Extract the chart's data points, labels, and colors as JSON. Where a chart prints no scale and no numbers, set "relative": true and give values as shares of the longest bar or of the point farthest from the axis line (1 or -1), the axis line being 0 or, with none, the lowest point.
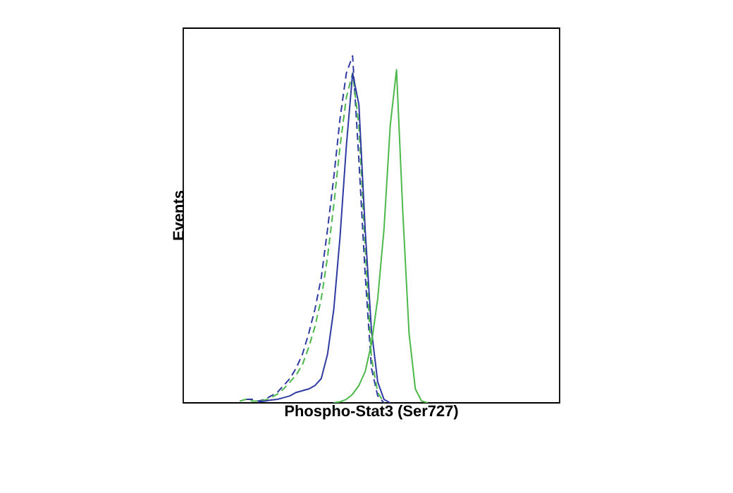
{
  "chart_data": {
    "type": "line",
    "relative": true,
    "xlabel": "Phospho-Stat3 (Ser727)",
    "ylabel": "Events",
    "marker": "none",
    "categories": [
      null,
      null,
      null,
      null,
      null,
      null,
      null,
      null,
      null,
      null,
      null,
      null,
      null,
      null,
      null,
      null,
      null,
      null,
      null,
      null,
      null,
      null,
      null,
      null,
      null,
      null,
      null,
      null,
      null,
      null,
      null,
      null,
      null,
      null,
      null,
      null,
      null,
      null,
      null,
      null,
      null,
      null,
      null,
      null,
      null,
      null,
      null,
      null,
      null,
      null,
      null,
      null,
      null,
      null,
      null,
      null,
      null,
      null,
      null,
      null,
      null
    ],
    "series": [
      {
        "color": "#2e3a9f",
        "line_style": "dashed",
        "values": [
          null,
          null,
          null,
          null,
          null,
          null,
          null,
          null,
          null,
          null,
          0.01,
          0.01,
          0.005,
          0.01,
          0.02,
          0.03,
          0.05,
          0.07,
          0.1,
          0.14,
          0.2,
          0.27,
          0.36,
          0.5,
          0.65,
          0.82,
          0.95,
          1,
          0.7,
          0.37,
          0.1,
          0.02,
          0,
          null,
          null,
          null,
          null,
          null,
          null,
          null,
          null,
          null,
          null,
          null,
          null,
          null,
          null,
          null,
          null,
          null,
          null,
          null,
          null,
          null,
          null,
          null,
          null,
          null,
          null,
          null,
          null
        ]
      },
      {
        "color": "#4cb84a",
        "line_style": "dashed",
        "values": [
          null,
          null,
          null,
          null,
          null,
          null,
          null,
          null,
          null,
          0.005,
          0.01,
          0.005,
          0.005,
          0.008,
          0.015,
          0.025,
          0.04,
          0.06,
          0.08,
          0.11,
          0.16,
          0.22,
          0.3,
          0.42,
          0.57,
          0.74,
          0.88,
          0.95,
          0.8,
          0.45,
          0.13,
          0.03,
          0,
          null,
          null,
          null,
          null,
          null,
          null,
          null,
          null,
          null,
          null,
          null,
          null,
          null,
          null,
          null,
          null,
          null,
          null,
          null,
          null,
          null,
          null,
          null,
          null,
          null,
          null,
          null,
          null
        ]
      },
      {
        "color": "#2e3a9f",
        "line_style": "solid",
        "values": [
          null,
          null,
          null,
          null,
          null,
          null,
          null,
          null,
          null,
          null,
          null,
          null,
          0.003,
          0.005,
          0.008,
          0.01,
          0.015,
          0.02,
          0.03,
          0.035,
          0.04,
          0.05,
          0.07,
          0.14,
          0.27,
          0.48,
          0.74,
          0.95,
          0.86,
          0.5,
          0.21,
          0.06,
          0.01,
          0,
          null,
          null,
          null,
          null,
          null,
          null,
          null,
          null,
          null,
          null,
          null,
          null,
          null,
          null,
          null,
          null,
          null,
          null,
          null,
          null,
          null,
          null,
          null,
          null,
          null,
          null,
          null
        ]
      },
      {
        "color": "#4cb84a",
        "line_style": "solid",
        "values": [
          null,
          null,
          null,
          null,
          null,
          null,
          null,
          null,
          null,
          null,
          null,
          null,
          null,
          null,
          null,
          null,
          null,
          null,
          null,
          null,
          null,
          null,
          null,
          null,
          0,
          0.003,
          0.01,
          0.025,
          0.05,
          0.09,
          0.17,
          0.3,
          0.5,
          0.8,
          0.96,
          0.55,
          0.2,
          0.04,
          0.005,
          0,
          null,
          null,
          null,
          null,
          null,
          null,
          null,
          null,
          null,
          null,
          null,
          null,
          null,
          null,
          null,
          null,
          null,
          null,
          null,
          null,
          null
        ]
      }
    ]
  }
}
